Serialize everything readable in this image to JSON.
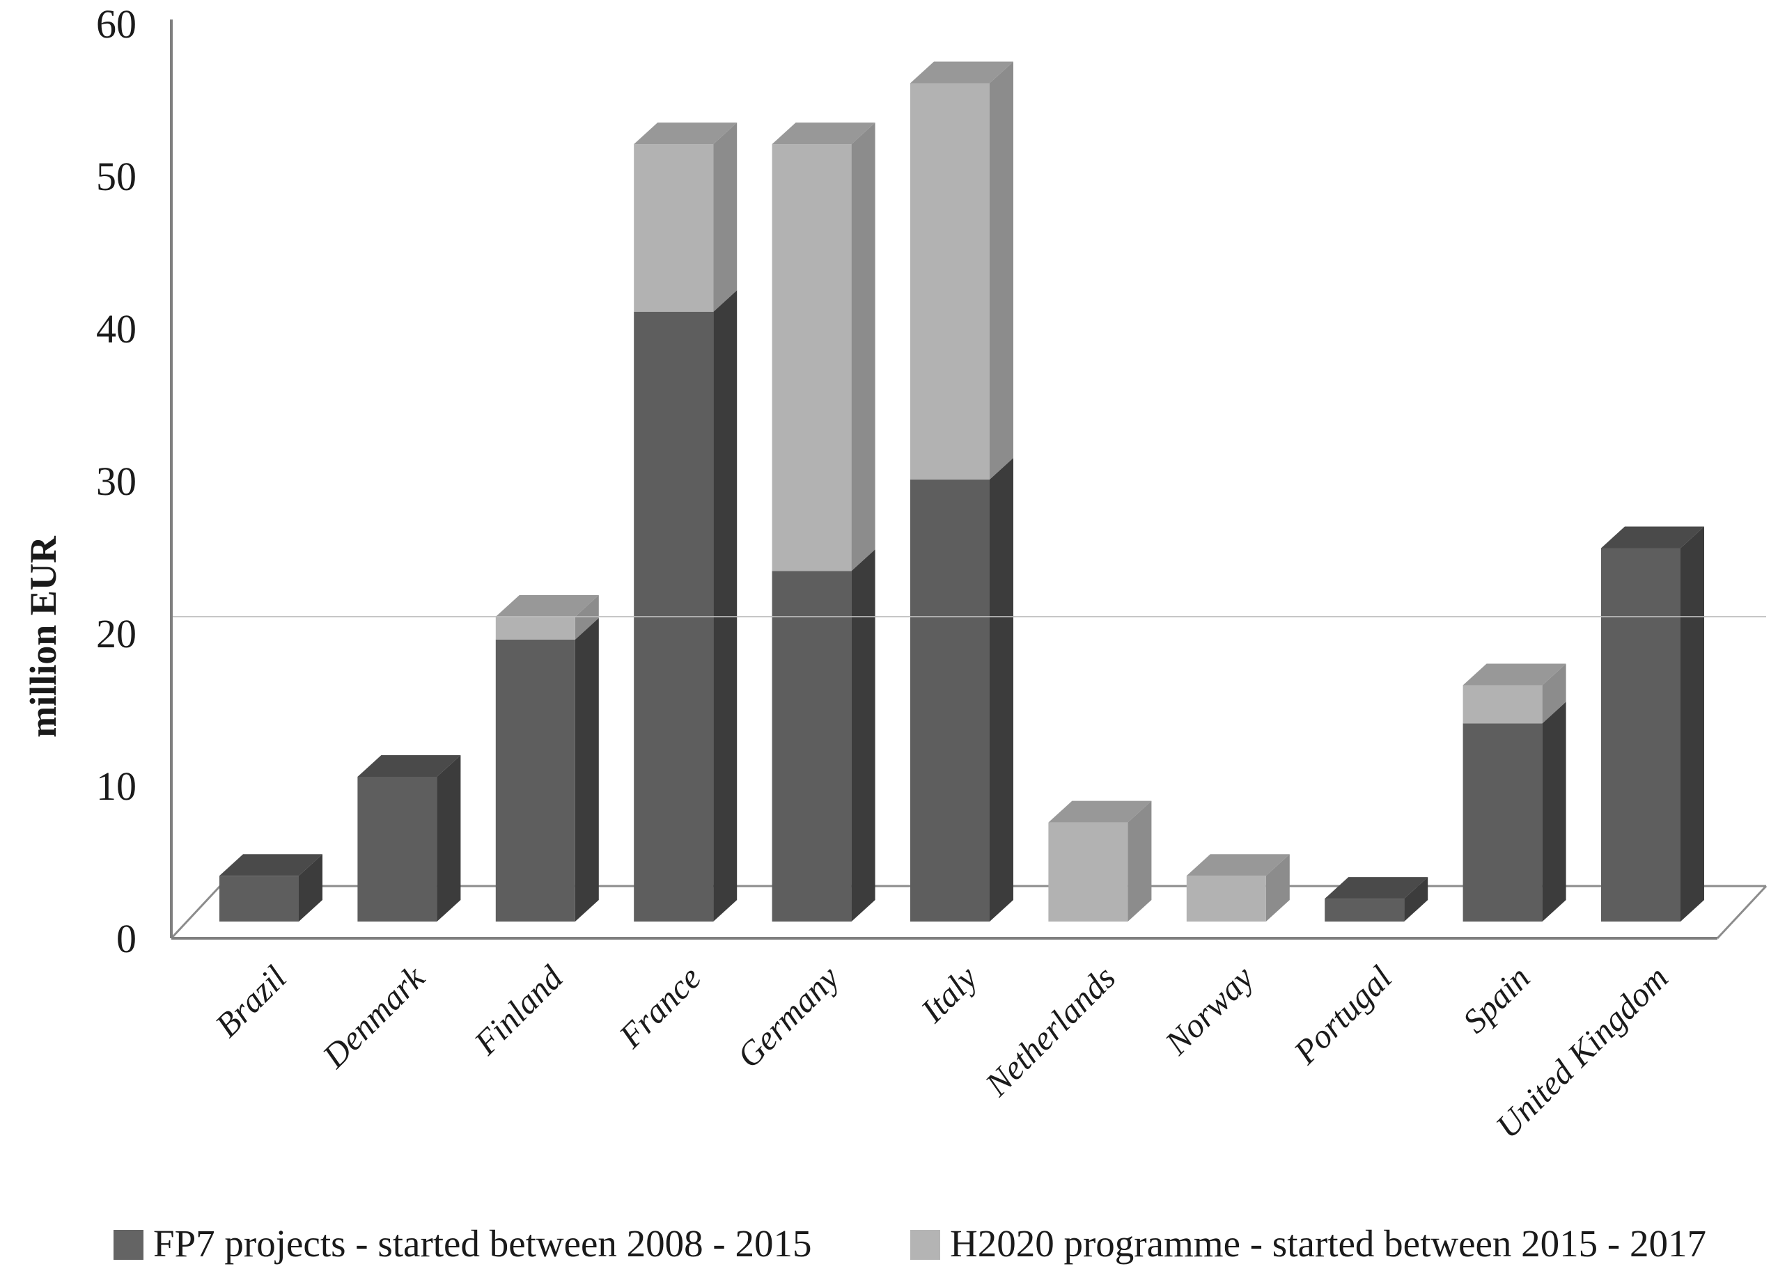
{
  "chart_data": {
    "type": "bar",
    "subtype": "3d-stacked-column",
    "title": "",
    "xlabel": "",
    "ylabel": "million EUR",
    "ylim": [
      0,
      60
    ],
    "yticks": [
      0,
      10,
      20,
      30,
      40,
      50,
      60
    ],
    "grid": "single faint horizontal line visible at 20",
    "legend_position": "bottom",
    "categories": [
      "Brazil",
      "Denmark",
      "Finland",
      "France",
      "Germany",
      "Italy",
      "Netherlands",
      "Norway",
      "Portugal",
      "Spain",
      "United Kingdom"
    ],
    "series": [
      {
        "name": "FP7 projects - started between 2008 - 2015",
        "values": [
          3,
          9.5,
          18.5,
          40,
          23,
          29,
          0,
          0,
          1.5,
          13,
          24.5
        ]
      },
      {
        "name": "H2020 programme - started between 2015 - 2017",
        "values": [
          0,
          0,
          1.5,
          11,
          28,
          26,
          6.5,
          3,
          0,
          2.5,
          0
        ]
      }
    ]
  },
  "colors": {
    "fp7_front": "#5e5e5e",
    "fp7_side": "#3c3c3c",
    "fp7_top": "#4a4a4a",
    "h2020_front": "#b2b2b2",
    "h2020_side": "#8c8c8c",
    "h2020_top": "#989898",
    "axis_line": "#7f7f7f",
    "floor_line": "#8c8c8c",
    "gridline": "#bdbdbd",
    "legend_fp7_swatch": "#646464",
    "legend_h2020_swatch": "#b4b4b4",
    "text": "#1a1a1a"
  },
  "legend": {
    "fp7_label": "FP7 projects - started between 2008 - 2015",
    "h2020_label": "H2020 programme - started between 2015 - 2017"
  },
  "axis": {
    "y_title": "million EUR",
    "tick_labels": [
      "0",
      "10",
      "20",
      "30",
      "40",
      "50",
      "60"
    ]
  }
}
